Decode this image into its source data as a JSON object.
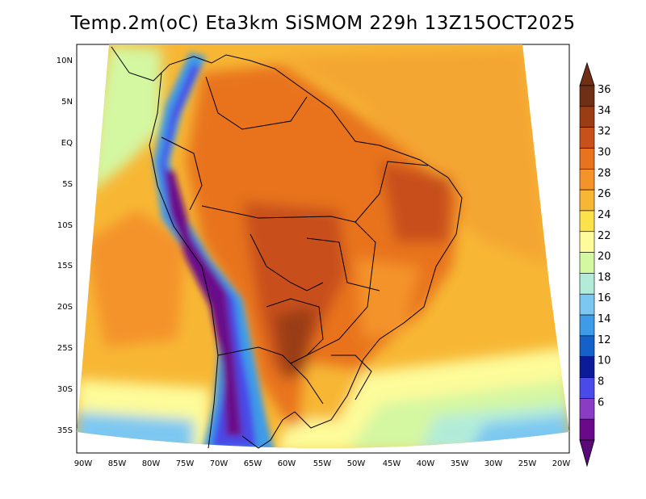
{
  "title": "Temp.2m(oC) Eta3km SiSMOM 229h 13Z15OCT2025",
  "map": {
    "variable": "2 m temperature",
    "units": "oC",
    "lat_labels": [
      "10N",
      "5N",
      "EQ",
      "5S",
      "10S",
      "15S",
      "20S",
      "25S",
      "30S",
      "35S"
    ],
    "lon_labels": [
      "90W",
      "85W",
      "80W",
      "75W",
      "70W",
      "65W",
      "60W",
      "55W",
      "50W",
      "45W",
      "40W",
      "35W",
      "30W",
      "25W",
      "20W"
    ]
  },
  "colorbar": {
    "labels": [
      "36",
      "34",
      "32",
      "30",
      "28",
      "26",
      "24",
      "22",
      "20",
      "18",
      "16",
      "14",
      "12",
      "10",
      "8",
      "6"
    ],
    "colors": [
      "#6e2f16",
      "#9a3d14",
      "#c8501a",
      "#e8731e",
      "#f4932a",
      "#f7b735",
      "#fbe14a",
      "#fdfb9a",
      "#d4f7a2",
      "#b2ecd9",
      "#7cc7f2",
      "#3d9be8",
      "#1462c8",
      "#0c1c98",
      "#4a4ae8",
      "#8a3dc4",
      "#6a0a8a"
    ],
    "top_color": "#6e2f16",
    "bottom_color": "#5a0a78"
  }
}
